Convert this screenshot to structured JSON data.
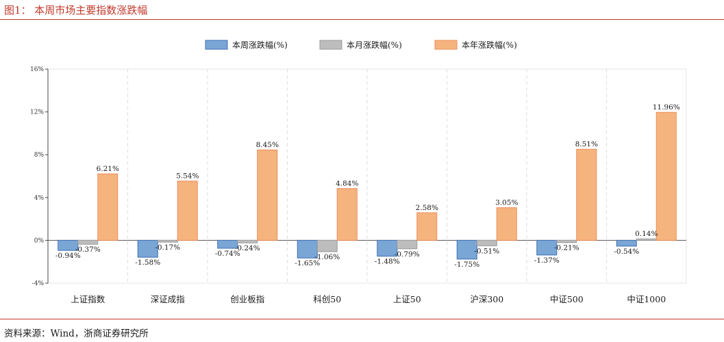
{
  "figure": {
    "title": "图1： 本周市场主要指数涨跌幅",
    "source": "资料来源：Wind，浙商证券研究所"
  },
  "colors": {
    "accent": "#c0392b",
    "week": "#7aa6d6",
    "week_stroke": "#3d6fb4",
    "month": "#bdbdbd",
    "month_stroke": "#9a9a9a",
    "year": "#f5b47e",
    "year_stroke": "#ef8a5a"
  },
  "chart_data": {
    "type": "bar",
    "categories": [
      "上证指数",
      "深证成指",
      "创业板指",
      "科创50",
      "上证50",
      "沪深300",
      "中证500",
      "中证1000"
    ],
    "series": [
      {
        "name": "本周涨跌幅(%)",
        "values": [
          -0.94,
          -1.58,
          -0.74,
          -1.65,
          -1.48,
          -1.75,
          -1.37,
          -0.54
        ],
        "labels": [
          "-0.94%",
          "-1.58%",
          "-0.74%",
          "-1.65%",
          "-1.48%",
          "-1.75%",
          "-1.37%",
          "-0.54%"
        ]
      },
      {
        "name": "本月涨跌幅(%)",
        "values": [
          -0.37,
          -0.17,
          -0.24,
          -1.06,
          -0.79,
          -0.51,
          -0.21,
          0.14
        ],
        "labels": [
          "-0.37%",
          "-0.17%",
          "-0.24%",
          "-1.06%",
          "-0.79%",
          "-0.51%",
          "-0.21%",
          "0.14%"
        ]
      },
      {
        "name": "本年涨跌幅(%)",
        "values": [
          6.21,
          5.54,
          8.45,
          4.84,
          2.58,
          3.05,
          8.51,
          11.96
        ],
        "labels": [
          "6.21%",
          "5.54%",
          "8.45%",
          "4.84%",
          "2.58%",
          "3.05%",
          "8.51%",
          "11.96%"
        ]
      }
    ],
    "ylim": [
      -4,
      16
    ],
    "yticks": [
      -4,
      0,
      4,
      8,
      12,
      16
    ],
    "ytick_labels": [
      "-4%",
      "0%",
      "4%",
      "8%",
      "12%",
      "16%"
    ],
    "grid": "vertical dashed",
    "legend_position": "top-center"
  }
}
